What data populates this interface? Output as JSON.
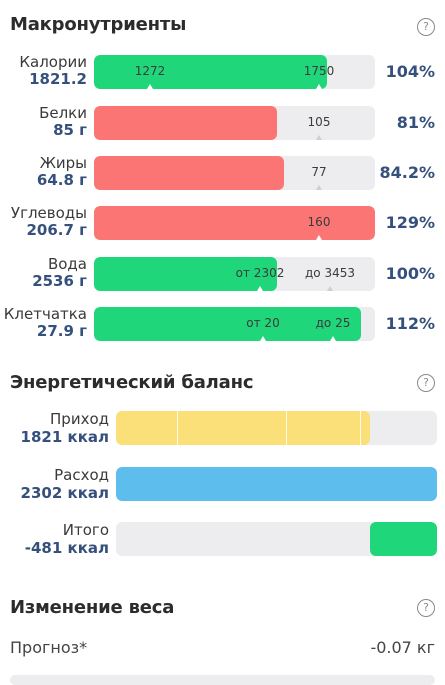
{
  "macros": {
    "title": "Макронутриенты",
    "help": "?",
    "rows": [
      {
        "name": "Калории",
        "value": "1821.2",
        "pct": "104%",
        "fill": 0.83,
        "color": "green",
        "marks": [
          {
            "text": "1272",
            "pos": 0.2
          },
          {
            "text": "1750",
            "pos": 0.8
          }
        ]
      },
      {
        "name": "Белки",
        "value": "85 г",
        "pct": "81%",
        "fill": 0.65,
        "color": "red",
        "marks": [
          {
            "text": "105",
            "pos": 0.8
          }
        ]
      },
      {
        "name": "Жиры",
        "value": "64.8 г",
        "pct": "84.2%",
        "fill": 0.675,
        "color": "red",
        "marks": [
          {
            "text": "77",
            "pos": 0.8
          }
        ]
      },
      {
        "name": "Углеводы",
        "value": "206.7 г",
        "pct": "129%",
        "fill": 1.0,
        "color": "red",
        "marks": [
          {
            "text": "160",
            "pos": 0.8
          }
        ]
      },
      {
        "name": "Вода",
        "value": "2536 г",
        "pct": "100%",
        "fill": 0.65,
        "color": "green",
        "marks": [
          {
            "text": "от 2302",
            "pos": 0.59
          },
          {
            "text": "до 3453",
            "pos": 0.84
          }
        ]
      },
      {
        "name": "Клетчатка",
        "value": "27.9 г",
        "pct": "112%",
        "fill": 0.95,
        "color": "green",
        "marks": [
          {
            "text": "от 20",
            "pos": 0.6
          },
          {
            "text": "до 25",
            "pos": 0.85
          }
        ]
      }
    ]
  },
  "balance": {
    "title": "Энергетический баланс",
    "help": "?",
    "rows": [
      {
        "name": "Приход",
        "value": "1821 ккал",
        "fill": 0.79,
        "color": "yellow",
        "segments": [
          0.19,
          0.53,
          0.76
        ]
      },
      {
        "name": "Расход",
        "value": "2302 ккал",
        "fill": 1.0,
        "color": "blue",
        "segments": []
      },
      {
        "name": "Итого",
        "value": "-481 ккал",
        "fill": 0.21,
        "color": "green",
        "align": "right",
        "segments": []
      }
    ]
  },
  "weight": {
    "title": "Изменение веса",
    "help": "?",
    "forecast_label": "Прогноз*",
    "forecast_value": "-0.07 кг"
  }
}
